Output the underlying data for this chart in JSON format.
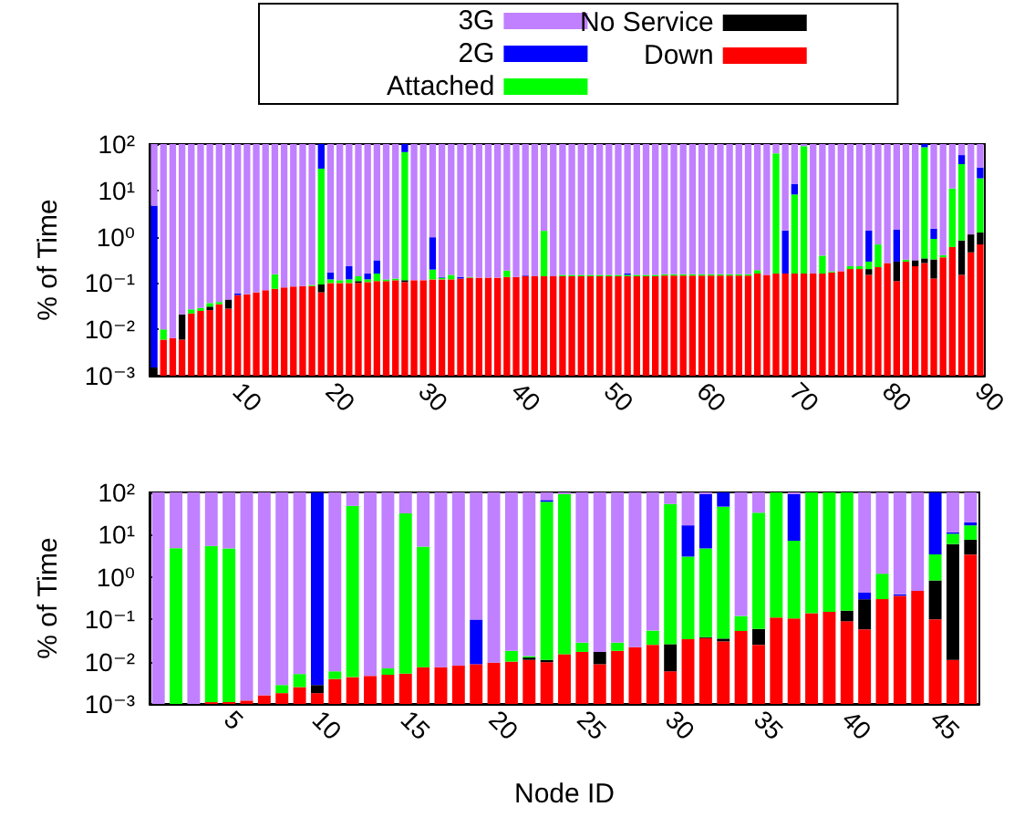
{
  "chart_data": [
    {
      "type": "bar",
      "stacked": true,
      "log": true,
      "grid": false,
      "legend": "top",
      "ylabel": "% of Time",
      "categories": [
        null,
        null,
        null,
        null,
        null,
        null,
        null,
        null,
        null,
        "10",
        null,
        null,
        null,
        null,
        null,
        null,
        null,
        null,
        null,
        "20",
        null,
        null,
        null,
        null,
        null,
        null,
        null,
        null,
        null,
        "30",
        null,
        null,
        null,
        null,
        null,
        null,
        null,
        null,
        null,
        "40",
        null,
        null,
        null,
        null,
        null,
        null,
        null,
        null,
        null,
        "50",
        null,
        null,
        null,
        null,
        null,
        null,
        null,
        null,
        null,
        "60",
        null,
        null,
        null,
        null,
        null,
        null,
        null,
        null,
        null,
        "70",
        null,
        null,
        null,
        null,
        null,
        null,
        null,
        null,
        null,
        "80",
        null,
        null,
        null,
        null,
        null,
        null,
        null,
        null,
        null,
        "90"
      ],
      "ylim": [
        0.001,
        100
      ],
      "yticks": [
        {
          "value": 0.001,
          "label": "10⁻³"
        },
        {
          "value": 0.01,
          "label": "10⁻²"
        },
        {
          "value": 0.1,
          "label": "10⁻¹"
        },
        {
          "value": 1,
          "label": "10⁰"
        },
        {
          "value": 10,
          "label": "10¹"
        },
        {
          "value": 100,
          "label": "10²"
        }
      ],
      "series": [
        {
          "name": "Down",
          "color": "#ff0000",
          "values": [
            null,
            0.006,
            0.0065,
            0.006,
            0.022,
            0.025,
            0.026,
            0.035,
            0.028,
            0.055,
            0.057,
            0.063,
            0.07,
            0.075,
            0.08,
            0.084,
            0.086,
            0.086,
            0.063,
            0.1,
            0.1,
            0.1,
            0.1,
            0.105,
            0.11,
            0.11,
            0.115,
            0.105,
            0.115,
            0.115,
            0.12,
            0.12,
            0.12,
            0.125,
            0.13,
            0.13,
            0.13,
            0.13,
            0.135,
            0.135,
            0.14,
            0.14,
            0.14,
            0.14,
            0.14,
            0.14,
            0.14,
            0.14,
            0.14,
            0.14,
            0.14,
            0.14,
            0.14,
            0.14,
            0.14,
            0.145,
            0.145,
            0.145,
            0.145,
            0.145,
            0.145,
            0.145,
            0.145,
            0.145,
            0.145,
            0.16,
            0.15,
            0.16,
            0.16,
            0.16,
            0.16,
            0.16,
            0.16,
            0.17,
            0.18,
            0.2,
            0.2,
            0.15,
            0.22,
            0.27,
            0.11,
            0.29,
            0.23,
            0.27,
            0.125,
            0.36,
            0.6,
            0.15,
            0.46,
            0.68
          ]
        },
        {
          "name": "No Service",
          "color": "#000000",
          "values": [
            0.0015,
            null,
            null,
            0.015,
            null,
            null,
            0.005,
            null,
            0.016,
            null,
            null,
            null,
            null,
            null,
            null,
            null,
            null,
            null,
            0.03,
            null,
            null,
            null,
            0.01,
            null,
            null,
            null,
            null,
            0.01,
            null,
            null,
            null,
            null,
            null,
            null,
            null,
            null,
            null,
            null,
            null,
            null,
            null,
            null,
            null,
            null,
            null,
            null,
            null,
            null,
            null,
            null,
            null,
            null,
            null,
            null,
            null,
            null,
            null,
            null,
            null,
            null,
            null,
            null,
            null,
            null,
            null,
            null,
            null,
            null,
            null,
            null,
            null,
            null,
            null,
            null,
            null,
            null,
            null,
            0.05,
            null,
            null,
            0.18,
            null,
            0.08,
            0.07,
            0.2,
            null,
            null,
            0.68,
            0.66,
            0.55
          ]
        },
        {
          "name": "Attached",
          "color": "#00ff00",
          "values": [
            null,
            0.004,
            null,
            null,
            0.005,
            0.004,
            0.006,
            0.004,
            null,
            null,
            null,
            null,
            null,
            0.08,
            null,
            null,
            null,
            0.005,
            29.4,
            0.02,
            0.015,
            0.02,
            0.03,
            0.015,
            0.05,
            0.01,
            0.01,
            67,
            null,
            null,
            0.075,
            0.01,
            0.03,
            null,
            0.005,
            null,
            null,
            null,
            0.05,
            null,
            null,
            null,
            1.2,
            null,
            0.01,
            0.01,
            0.01,
            0.01,
            0.01,
            0.01,
            0.01,
            0.01,
            0.01,
            0.01,
            0.01,
            0.01,
            0.01,
            0.01,
            0.01,
            0.01,
            0.01,
            0.01,
            0.01,
            0.01,
            0.01,
            0.03,
            null,
            63,
            null,
            8,
            90,
            null,
            0.23,
            0.01,
            null,
            0.03,
            0.03,
            0.09,
            0.46,
            null,
            null,
            0.03,
            null,
            85,
            0.57,
            0.04,
            10.4,
            36,
            null,
            17
          ]
        },
        {
          "name": "2G",
          "color": "#0000ff",
          "values": [
            4.7,
            null,
            null,
            null,
            null,
            null,
            null,
            null,
            null,
            0.005,
            null,
            null,
            null,
            null,
            null,
            null,
            null,
            null,
            70.5,
            0.05,
            null,
            0.11,
            null,
            0.04,
            0.15,
            null,
            null,
            32.88,
            null,
            null,
            0.78,
            0.005,
            null,
            0.01,
            null,
            null,
            null,
            null,
            null,
            null,
            0.005,
            null,
            null,
            null,
            null,
            null,
            null,
            null,
            null,
            null,
            null,
            0.01,
            null,
            null,
            null,
            null,
            null,
            null,
            null,
            null,
            null,
            null,
            null,
            null,
            null,
            null,
            null,
            null,
            1.2,
            5.7,
            null,
            null,
            null,
            null,
            null,
            null,
            null,
            1.06,
            null,
            null,
            1.12,
            null,
            null,
            14.66,
            0.6,
            null,
            null,
            21,
            null,
            13
          ]
        },
        {
          "name": "3G",
          "color": "#c080ff",
          "values": [
            95.3,
            99.99,
            99.99,
            99.98,
            99.97,
            99.97,
            99.96,
            99.96,
            99.96,
            99.94,
            99.94,
            99.94,
            99.93,
            99.85,
            99.92,
            99.92,
            99.91,
            99.91,
            null,
            99.83,
            99.89,
            99.78,
            99.86,
            99.84,
            99.69,
            99.88,
            99.88,
            null,
            99.88,
            99.89,
            99.03,
            99.87,
            99.85,
            99.87,
            99.87,
            99.87,
            99.87,
            99.87,
            99.82,
            99.87,
            99.86,
            99.86,
            98.66,
            99.86,
            99.85,
            99.85,
            99.85,
            99.85,
            99.85,
            99.85,
            99.85,
            99.84,
            99.85,
            99.85,
            99.85,
            99.85,
            99.85,
            99.85,
            99.85,
            99.85,
            99.85,
            99.85,
            99.85,
            99.85,
            99.85,
            99.81,
            99.85,
            36.84,
            98.64,
            86.14,
            9.84,
            99.84,
            99.61,
            99.82,
            99.82,
            99.77,
            99.77,
            98.65,
            99.32,
            99.73,
            98.59,
            99.68,
            99.69,
            null,
            98.5,
            99.6,
            89,
            42.17,
            98.88,
            68.77
          ]
        }
      ]
    },
    {
      "type": "bar",
      "stacked": true,
      "log": true,
      "grid": false,
      "legend": false,
      "ylabel": "% of Time",
      "xlabel": "Node ID",
      "categories": [
        null,
        null,
        null,
        null,
        "5",
        null,
        null,
        null,
        null,
        "10",
        null,
        null,
        null,
        null,
        "15",
        null,
        null,
        null,
        null,
        "20",
        null,
        null,
        null,
        null,
        "25",
        null,
        null,
        null,
        null,
        "30",
        null,
        null,
        null,
        null,
        "35",
        null,
        null,
        null,
        null,
        "40",
        null,
        null,
        null,
        null,
        "45",
        null,
        null
      ],
      "ylim": [
        0.001,
        100
      ],
      "yticks": [
        {
          "value": 0.001,
          "label": "10⁻³"
        },
        {
          "value": 0.01,
          "label": "10⁻²"
        },
        {
          "value": 0.1,
          "label": "10⁻¹"
        },
        {
          "value": 1,
          "label": "10⁰"
        },
        {
          "value": 10,
          "label": "10¹"
        },
        {
          "value": 100,
          "label": "10²"
        }
      ],
      "series": [
        {
          "color": "#ff0000",
          "values": [
            null,
            null,
            null,
            0.0011,
            0.0011,
            0.0012,
            0.0016,
            0.0018,
            0.0025,
            0.0018,
            0.0039,
            0.0043,
            0.0046,
            0.0049,
            0.0052,
            0.0074,
            0.0074,
            0.008,
            0.0087,
            0.0095,
            0.01,
            0.011,
            0.0097,
            0.015,
            0.017,
            0.0087,
            0.018,
            0.022,
            0.025,
            0.0059,
            0.034,
            0.036,
            0.03,
            0.053,
            0.025,
            0.11,
            0.105,
            0.14,
            0.15,
            0.09,
            0.058,
            0.3,
            0.36,
            0.47,
            0.1,
            0.011,
            3.4
          ]
        },
        {
          "color": "#000000",
          "values": [
            null,
            null,
            null,
            null,
            null,
            null,
            null,
            null,
            null,
            0.001,
            null,
            null,
            null,
            null,
            null,
            null,
            null,
            null,
            null,
            null,
            null,
            0.0015,
            0.0013,
            null,
            null,
            0.0083,
            null,
            null,
            null,
            0.02,
            null,
            0.002,
            0.005,
            null,
            0.034,
            null,
            null,
            null,
            null,
            0.07,
            0.24,
            null,
            null,
            null,
            0.73,
            6,
            4.2
          ]
        },
        {
          "color": "#00ff00",
          "values": [
            null,
            4.8,
            null,
            5.4,
            4.7,
            null,
            null,
            0.001,
            0.0026,
            null,
            0.002,
            48,
            null,
            0.002,
            32,
            5.2,
            null,
            null,
            null,
            null,
            0.008,
            0.001,
            60,
            91,
            0.011,
            null,
            0.01,
            null,
            0.029,
            53,
            3,
            4.7,
            46,
            0.067,
            33,
            99.89,
            7.1,
            99.86,
            99.85,
            99.84,
            null,
            0.9,
            null,
            null,
            2.6,
            4.5,
            9
          ]
        },
        {
          "color": "#0000ff",
          "values": [
            null,
            null,
            null,
            null,
            null,
            null,
            null,
            null,
            null,
            99.99,
            null,
            null,
            null,
            null,
            null,
            null,
            null,
            null,
            0.09,
            null,
            null,
            null,
            6,
            null,
            null,
            null,
            null,
            null,
            null,
            null,
            13.6,
            86,
            53.96,
            null,
            null,
            null,
            84,
            null,
            null,
            null,
            0.13,
            null,
            0.03,
            null,
            96.57,
            0.8,
            3
          ]
        },
        {
          "color": "#c080ff",
          "values": [
            100,
            95.2,
            100,
            94.6,
            95.3,
            99.99,
            99.99,
            99.99,
            99.99,
            null,
            99.99,
            52,
            99.99,
            99.99,
            68,
            94.8,
            99.99,
            99.99,
            99.9,
            99.99,
            99.98,
            99.99,
            34,
            8.98,
            99.97,
            99.98,
            99.97,
            99.98,
            99.95,
            47,
            83.4,
            9.3,
            null,
            99.88,
            66.9,
            null,
            8.8,
            null,
            null,
            null,
            99.57,
            98.8,
            99.61,
            99.53,
            null,
            88.7,
            80.4
          ]
        }
      ]
    }
  ]
}
